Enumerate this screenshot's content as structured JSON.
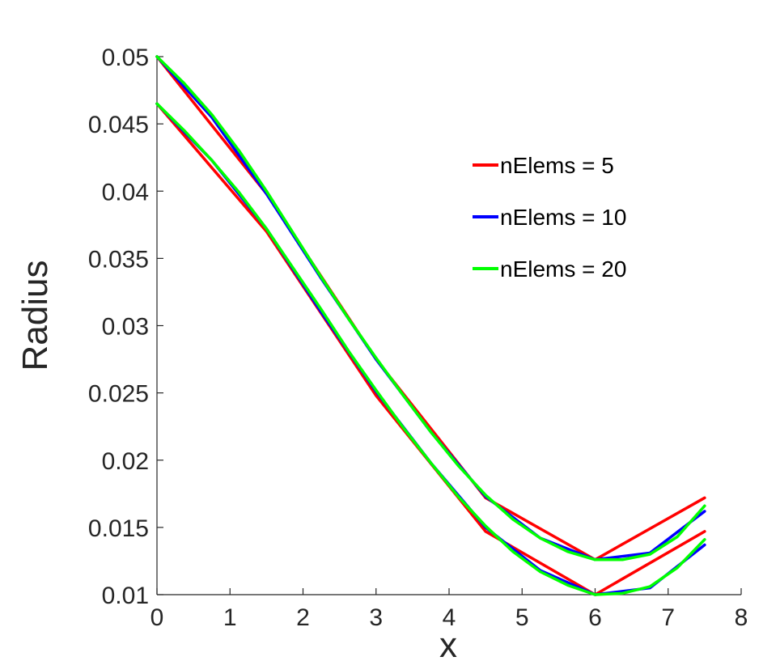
{
  "chart_data": {
    "type": "line",
    "title": "",
    "xlabel": "x",
    "ylabel": "Radius",
    "xlim": [
      0,
      8
    ],
    "ylim": [
      0.01,
      0.05
    ],
    "xticks": [
      "0",
      "1",
      "2",
      "3",
      "4",
      "5",
      "6",
      "7",
      "8"
    ],
    "yticks": [
      "0.01",
      "0.015",
      "0.02",
      "0.025",
      "0.03",
      "0.035",
      "0.04",
      "0.045",
      "0.05"
    ],
    "grid": false,
    "legend_position": "upper-right",
    "series": [
      {
        "name": "nElems = 5",
        "color": "#ff0000",
        "lines": [
          {
            "x": [
              0,
              1.5,
              3,
              4.5,
              6,
              7.5
            ],
            "y": [
              0.05,
              0.0398,
              0.0275,
              0.0172,
              0.0126,
              0.0172
            ]
          },
          {
            "x": [
              0,
              1.5,
              3,
              4.5,
              6,
              7.5
            ],
            "y": [
              0.0465,
              0.037,
              0.0248,
              0.0147,
              0.01,
              0.0147
            ]
          }
        ]
      },
      {
        "name": "nElems = 10",
        "color": "#0000ff",
        "lines": [
          {
            "x": [
              0,
              0.75,
              1.5,
              2.25,
              3,
              3.75,
              4.5,
              5.25,
              6,
              6.75,
              7.5
            ],
            "y": [
              0.05,
              0.0455,
              0.0398,
              0.0335,
              0.0275,
              0.0221,
              0.0173,
              0.0142,
              0.0126,
              0.0131,
              0.0162
            ]
          },
          {
            "x": [
              0,
              0.75,
              1.5,
              2.25,
              3,
              3.75,
              4.5,
              5.25,
              6,
              6.75,
              7.5
            ],
            "y": [
              0.0465,
              0.0423,
              0.0372,
              0.031,
              0.0251,
              0.0198,
              0.015,
              0.0118,
              0.01,
              0.0105,
              0.0137
            ]
          }
        ]
      },
      {
        "name": "nElems = 20",
        "color": "#00ff00",
        "lines": [
          {
            "x": [
              0,
              0.375,
              0.75,
              1.125,
              1.5,
              1.875,
              2.25,
              2.625,
              3,
              3.375,
              3.75,
              4.125,
              4.5,
              4.875,
              5.25,
              5.625,
              6,
              6.375,
              6.75,
              7.125,
              7.5
            ],
            "y": [
              0.05,
              0.048,
              0.0457,
              0.043,
              0.04,
              0.0368,
              0.0336,
              0.0305,
              0.0276,
              0.0248,
              0.0221,
              0.0196,
              0.0174,
              0.0156,
              0.0142,
              0.0132,
              0.0126,
              0.0126,
              0.013,
              0.0143,
              0.0166
            ]
          },
          {
            "x": [
              0,
              0.375,
              0.75,
              1.125,
              1.5,
              1.875,
              2.25,
              2.625,
              3,
              3.375,
              3.75,
              4.125,
              4.5,
              4.875,
              5.25,
              5.625,
              6,
              6.375,
              6.75,
              7.125,
              7.5
            ],
            "y": [
              0.0465,
              0.0445,
              0.0423,
              0.0399,
              0.0372,
              0.0342,
              0.0312,
              0.0281,
              0.0252,
              0.0224,
              0.0198,
              0.0173,
              0.0151,
              0.0132,
              0.0117,
              0.0107,
              0.01,
              0.0101,
              0.0106,
              0.012,
              0.0141
            ]
          }
        ]
      }
    ]
  }
}
